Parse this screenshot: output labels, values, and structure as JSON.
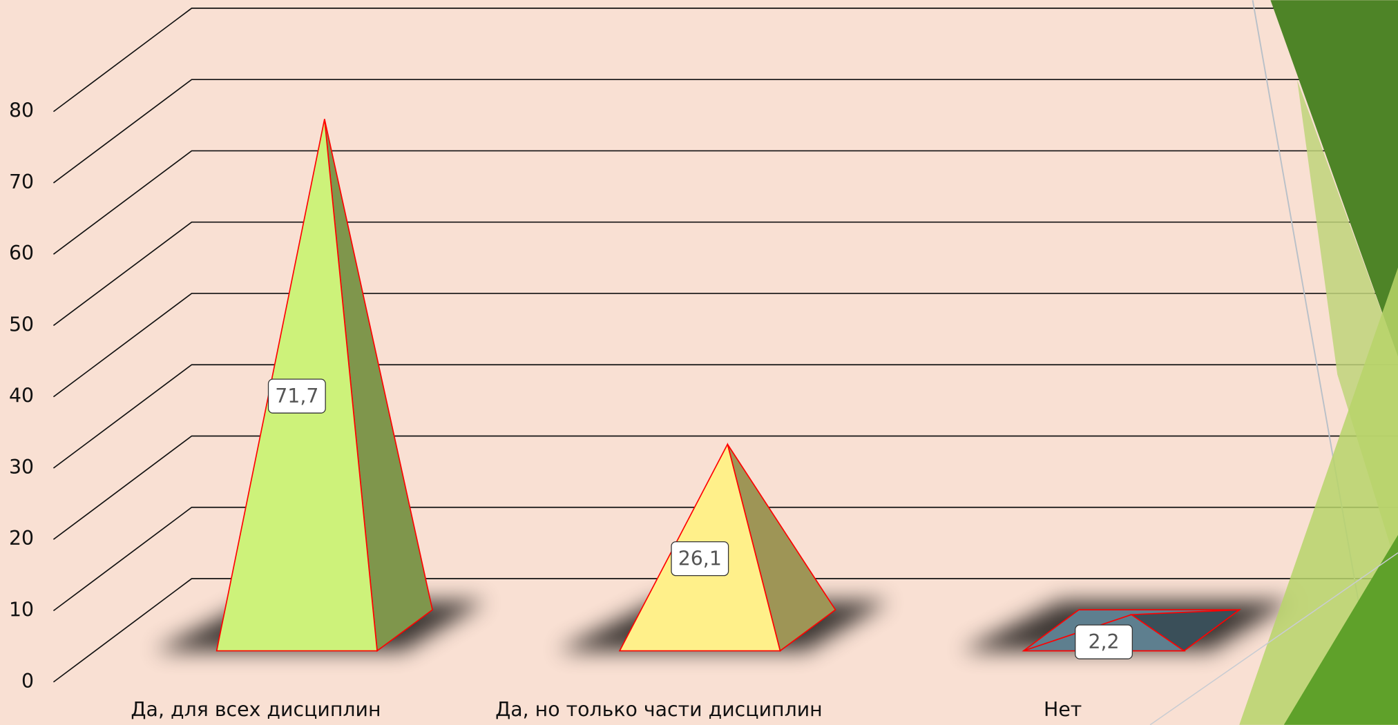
{
  "chart_data": {
    "type": "pyramid",
    "categories": [
      "Да, для всех дисциплин",
      "Да, но только части дисциплин",
      "Нет"
    ],
    "values": [
      71.7,
      26.1,
      2.2
    ],
    "value_labels": [
      "71,7",
      "26,1",
      "2,2"
    ],
    "colors": [
      "#cdf27a",
      "#fff08a",
      "#5e7f8f"
    ],
    "ylim": [
      0,
      80
    ],
    "yticks": [
      0,
      10,
      20,
      30,
      40,
      50,
      60,
      70,
      80
    ],
    "grid": true
  }
}
